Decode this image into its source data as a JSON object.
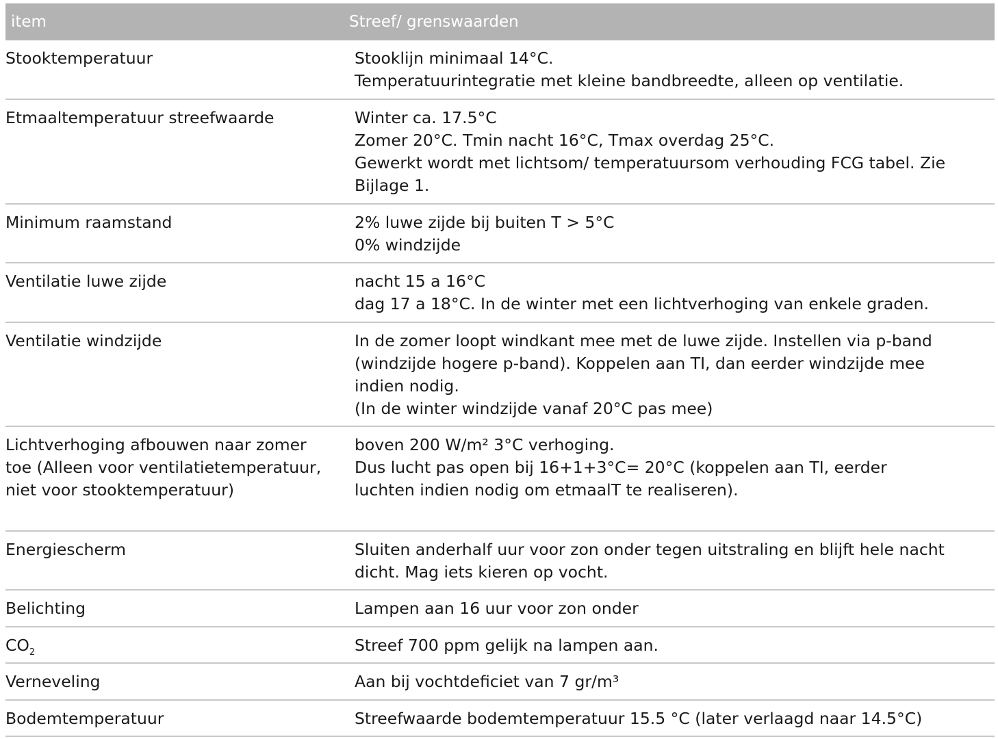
{
  "table": {
    "headers": [
      "item",
      "Streef/ grenswaarden"
    ],
    "rows": [
      {
        "item": [
          "Stooktemperatuur"
        ],
        "value": [
          "Stooklijn minimaal 14°C.",
          "Temperatuurintegratie met kleine bandbreedte, alleen op ventilatie."
        ]
      },
      {
        "item": [
          "Etmaaltemperatuur streefwaarde"
        ],
        "value": [
          "Winter ca. 17.5°C",
          "Zomer 20°C. Tmin nacht 16°C, Tmax overdag 25°C.",
          "Gewerkt wordt met lichtsom/ temperatuursom verhouding FCG tabel. Zie",
          "Bijlage 1."
        ]
      },
      {
        "item": [
          "Minimum raamstand"
        ],
        "value": [
          "2% luwe zijde bij buiten T > 5°C",
          "0% windzijde"
        ]
      },
      {
        "item": [
          "Ventilatie luwe zijde"
        ],
        "value": [
          "nacht 15 a 16°C",
          "dag 17 a 18°C. In de winter met een lichtverhoging van enkele graden."
        ]
      },
      {
        "item": [
          "Ventilatie windzijde"
        ],
        "value": [
          "In de zomer loopt windkant mee met de luwe zijde. Instellen via p-band",
          "(windzijde hogere p-band). Koppelen aan TI, dan eerder windzijde mee",
          "indien nodig.",
          "(In de winter windzijde vanaf 20°C pas mee)"
        ]
      },
      {
        "item": [
          "Lichtverhoging afbouwen naar zomer",
          "toe (Alleen voor ventilatietemperatuur,",
          "niet voor stooktemperatuur)"
        ],
        "value": [
          "boven 200 W/m² 3°C verhoging.",
          "Dus lucht pas open bij 16+1+3°C= 20°C (koppelen aan TI, eerder",
          "luchten indien nodig om etmaalT te realiseren)."
        ]
      },
      {
        "item": [
          "Energiescherm"
        ],
        "value": [
          "Sluiten anderhalf uur voor zon onder tegen uitstraling en blijft hele nacht",
          "dicht. Mag iets kieren op vocht."
        ]
      },
      {
        "item": [
          "Belichting"
        ],
        "value": [
          "Lampen aan 16 uur voor zon onder"
        ]
      },
      {
        "item": [
          "CO"
        ],
        "item_sub": "2",
        "value": [
          "Streef 700 ppm gelijk na lampen aan."
        ]
      },
      {
        "item": [
          "Verneveling"
        ],
        "value": [
          "Aan bij vochtdeficiet van 7 gr/m³"
        ]
      },
      {
        "item": [
          "Bodemtemperatuur"
        ],
        "value": [
          "Streefwaarde bodemtemperatuur 15.5 °C (later verlaagd naar 14.5°C)"
        ]
      }
    ]
  }
}
